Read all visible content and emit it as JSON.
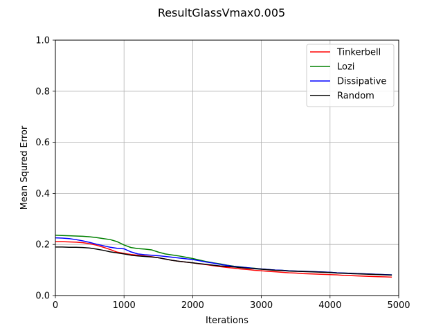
{
  "chart_data": {
    "type": "line",
    "title": "ResultGlassVmax0.005",
    "xlabel": "Iterations",
    "ylabel": "Mean Squred Error",
    "xlim": [
      0,
      5000
    ],
    "ylim": [
      0,
      1.0
    ],
    "xticks": [
      "0",
      "1000",
      "2000",
      "3000",
      "4000",
      "5000"
    ],
    "yticks": [
      "0.0",
      "0.2",
      "0.4",
      "0.6",
      "0.8",
      "1.0"
    ],
    "grid": true,
    "legend_position": "upper-right",
    "x": [
      0,
      100,
      200,
      300,
      400,
      500,
      600,
      700,
      800,
      900,
      1000,
      1100,
      1200,
      1300,
      1400,
      1500,
      1600,
      1700,
      1800,
      1900,
      2000,
      2100,
      2200,
      2300,
      2400,
      2500,
      2600,
      2700,
      2800,
      2900,
      3000,
      3100,
      3200,
      3300,
      3400,
      3500,
      3600,
      3700,
      3800,
      3900,
      4000,
      4100,
      4200,
      4300,
      4400,
      4500,
      4600,
      4700,
      4800,
      4900
    ],
    "series": [
      {
        "name": "Tinkerbell",
        "color": "#ff0000",
        "values": [
          0.211,
          0.211,
          0.21,
          0.209,
          0.207,
          0.203,
          0.197,
          0.189,
          0.18,
          0.17,
          0.165,
          0.161,
          0.158,
          0.155,
          0.152,
          0.148,
          0.143,
          0.138,
          0.134,
          0.131,
          0.128,
          0.124,
          0.121,
          0.117,
          0.113,
          0.11,
          0.107,
          0.104,
          0.102,
          0.099,
          0.097,
          0.095,
          0.093,
          0.091,
          0.089,
          0.088,
          0.086,
          0.085,
          0.084,
          0.083,
          0.082,
          0.081,
          0.079,
          0.078,
          0.077,
          0.076,
          0.075,
          0.074,
          0.073,
          0.072
        ]
      },
      {
        "name": "Lozi",
        "color": "#008000",
        "values": [
          0.236,
          0.235,
          0.234,
          0.233,
          0.232,
          0.23,
          0.227,
          0.223,
          0.219,
          0.211,
          0.198,
          0.188,
          0.184,
          0.182,
          0.179,
          0.17,
          0.163,
          0.159,
          0.155,
          0.15,
          0.145,
          0.139,
          0.133,
          0.128,
          0.124,
          0.119,
          0.115,
          0.112,
          0.109,
          0.107,
          0.104,
          0.102,
          0.1,
          0.099,
          0.097,
          0.096,
          0.095,
          0.094,
          0.093,
          0.092,
          0.091,
          0.089,
          0.088,
          0.087,
          0.086,
          0.085,
          0.084,
          0.083,
          0.082,
          0.081
        ]
      },
      {
        "name": "Dissipative",
        "color": "#0000ff",
        "values": [
          0.226,
          0.225,
          0.223,
          0.219,
          0.214,
          0.208,
          0.201,
          0.195,
          0.189,
          0.185,
          0.183,
          0.171,
          0.163,
          0.16,
          0.158,
          0.156,
          0.153,
          0.15,
          0.147,
          0.144,
          0.141,
          0.136,
          0.131,
          0.127,
          0.122,
          0.118,
          0.114,
          0.111,
          0.109,
          0.106,
          0.104,
          0.102,
          0.1,
          0.099,
          0.097,
          0.096,
          0.095,
          0.094,
          0.093,
          0.092,
          0.091,
          0.089,
          0.088,
          0.087,
          0.086,
          0.085,
          0.084,
          0.083,
          0.082,
          0.081
        ]
      },
      {
        "name": "Random",
        "color": "#000000",
        "values": [
          0.19,
          0.19,
          0.189,
          0.189,
          0.188,
          0.186,
          0.182,
          0.177,
          0.171,
          0.167,
          0.163,
          0.158,
          0.155,
          0.153,
          0.151,
          0.148,
          0.143,
          0.138,
          0.134,
          0.131,
          0.128,
          0.125,
          0.122,
          0.119,
          0.116,
          0.114,
          0.112,
          0.109,
          0.107,
          0.105,
          0.103,
          0.101,
          0.099,
          0.098,
          0.096,
          0.095,
          0.094,
          0.093,
          0.092,
          0.091,
          0.09,
          0.088,
          0.087,
          0.086,
          0.085,
          0.084,
          0.083,
          0.082,
          0.081,
          0.08
        ]
      }
    ]
  }
}
